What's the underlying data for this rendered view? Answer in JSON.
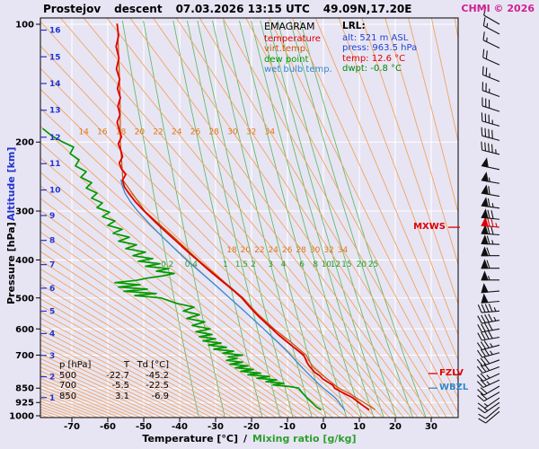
{
  "header": {
    "station": "Prostejov",
    "type": "descent",
    "datetime": "07.03.2026 13:15 UTC",
    "coords": "49.09N,17.20E",
    "copyright": "CHMI © 2026"
  },
  "legend": {
    "title": "EMAGRAM",
    "items": [
      {
        "label": "temperature",
        "color": "#dd0000"
      },
      {
        "label": "virt.temp.",
        "color": "#cc5500"
      },
      {
        "label": "dew point",
        "color": "#009900"
      },
      {
        "label": "wet bulb temp.",
        "color": "#3388cc"
      }
    ]
  },
  "lrl": {
    "title": "LRL:",
    "rows": [
      {
        "label": "alt:",
        "value": "521 m ASL",
        "color": "#2244cc"
      },
      {
        "label": "press:",
        "value": "963.5 hPa",
        "color": "#2244cc"
      },
      {
        "label": "temp:",
        "value": "12.6 °C",
        "color": "#dd0000"
      },
      {
        "label": "dwpt:",
        "value": "-0.8 °C",
        "color": "#008800"
      }
    ]
  },
  "table": {
    "header": [
      "p [hPa]",
      "T",
      "Td [°C]"
    ],
    "rows": [
      [
        "500",
        "-22.7",
        "-45.2"
      ],
      [
        "700",
        "-5.5",
        "-22.5"
      ],
      [
        "850",
        "3.1",
        "-6.9"
      ]
    ]
  },
  "axis_titles": {
    "altitude": "Altitude [km]",
    "pressure": "Pressure [hPa]",
    "x_black": "Temperature [°C]",
    "x_sep": "/",
    "x_green": "Mixing ratio [g/kg]"
  },
  "annotations": {
    "mxws": "MXWS",
    "fzlv": "FZLV",
    "wbzl": "WBZL"
  },
  "colors": {
    "temperature": "#dd0000",
    "virtual_temperature": "#cc5500",
    "dew_point": "#009900",
    "wet_bulb": "#3388cc",
    "adiabat_line": "#f2a35e",
    "adiabat_label": "#e07818",
    "mixing_line": "#66bb66",
    "mixing_label": "#2d9e2d",
    "grid_white": "#ffffff",
    "axis_blue": "#2233cc",
    "wind": "#111111",
    "mxws": "#dd0000",
    "background": "#e7e5f4",
    "frame": "#000000",
    "copyright": "#d02090"
  },
  "chart_data": {
    "type": "sounding-emagram",
    "pressure_ticks": [
      100,
      200,
      300,
      400,
      500,
      600,
      700,
      850,
      925,
      1000
    ],
    "temp_ticks": [
      -70,
      -60,
      -50,
      -40,
      -30,
      -20,
      -10,
      0,
      10,
      20,
      30
    ],
    "altitude_ticks": [
      {
        "km": 16,
        "p": 103.5
      },
      {
        "km": 15,
        "p": 121.1
      },
      {
        "km": 14,
        "p": 141.7
      },
      {
        "km": 13,
        "p": 165.8
      },
      {
        "km": 12,
        "p": 194.3
      },
      {
        "km": 11,
        "p": 227.0
      },
      {
        "km": 10,
        "p": 265.0
      },
      {
        "km": 9,
        "p": 308.0
      },
      {
        "km": 8,
        "p": 356.5
      },
      {
        "km": 7,
        "p": 411.0
      },
      {
        "km": 6,
        "p": 472.2
      },
      {
        "km": 5,
        "p": 540.5
      },
      {
        "km": 4,
        "p": 616.6
      },
      {
        "km": 3,
        "p": 701.2
      },
      {
        "km": 2,
        "p": 795.0
      },
      {
        "km": 1,
        "p": 898.8
      }
    ],
    "dry_adiabats": {
      "min": -78,
      "max": 60,
      "step": 2,
      "label_rows": [
        {
          "p": 188,
          "values": [
            14,
            16,
            18,
            20,
            22,
            24,
            26,
            28,
            30,
            32,
            34
          ]
        },
        {
          "p": 376,
          "values": [
            18,
            20,
            22,
            24,
            26,
            28,
            30,
            32,
            34
          ]
        }
      ]
    },
    "mixing_ratio": {
      "values": [
        0.2,
        0.4,
        1,
        1.5,
        2,
        3,
        4,
        6,
        8,
        10,
        12,
        15,
        20,
        25
      ],
      "label_p": 410
    },
    "levels": {
      "mxws_p": 330,
      "fzlv_p": 780,
      "wbzl_p": 850
    },
    "series": {
      "temperature": [
        [
          963.5,
          12.6
        ],
        [
          950,
          11.6
        ],
        [
          925,
          9.8
        ],
        [
          900,
          8.2
        ],
        [
          875,
          5.6
        ],
        [
          850,
          3.1
        ],
        [
          835,
          2.6
        ],
        [
          820,
          1.2
        ],
        [
          805,
          -0.2
        ],
        [
          790,
          -1.0
        ],
        [
          775,
          -2.4
        ],
        [
          760,
          -3.2
        ],
        [
          745,
          -4.0
        ],
        [
          730,
          -4.6
        ],
        [
          715,
          -5.0
        ],
        [
          700,
          -5.5
        ],
        [
          680,
          -7.2
        ],
        [
          660,
          -9.0
        ],
        [
          640,
          -10.8
        ],
        [
          620,
          -12.6
        ],
        [
          600,
          -14.2
        ],
        [
          580,
          -16.0
        ],
        [
          560,
          -17.8
        ],
        [
          540,
          -19.5
        ],
        [
          520,
          -21.1
        ],
        [
          500,
          -22.7
        ],
        [
          480,
          -24.9
        ],
        [
          460,
          -27.3
        ],
        [
          440,
          -29.9
        ],
        [
          420,
          -32.5
        ],
        [
          400,
          -35.1
        ],
        [
          380,
          -37.9
        ],
        [
          360,
          -40.7
        ],
        [
          340,
          -43.7
        ],
        [
          320,
          -46.8
        ],
        [
          300,
          -49.9
        ],
        [
          285,
          -52.2
        ],
        [
          270,
          -54.2
        ],
        [
          260,
          -55.4
        ],
        [
          250,
          -55.9
        ],
        [
          242,
          -55.0
        ],
        [
          234,
          -56.2
        ],
        [
          226,
          -56.8
        ],
        [
          218,
          -55.9
        ],
        [
          210,
          -56.4
        ],
        [
          202,
          -57.1
        ],
        [
          194,
          -56.2
        ],
        [
          186,
          -56.8
        ],
        [
          178,
          -57.4
        ],
        [
          170,
          -56.6
        ],
        [
          162,
          -57.2
        ],
        [
          154,
          -56.5
        ],
        [
          146,
          -57.3
        ],
        [
          138,
          -56.7
        ],
        [
          130,
          -57.6
        ],
        [
          122,
          -56.9
        ],
        [
          114,
          -57.7
        ],
        [
          107,
          -57.0
        ],
        [
          100,
          -57.4
        ]
      ],
      "virtual_temperature": [
        [
          963.5,
          14.3
        ],
        [
          925,
          11.3
        ],
        [
          875,
          7.0
        ],
        [
          850,
          4.3
        ],
        [
          800,
          0.6
        ],
        [
          750,
          -3.0
        ],
        [
          700,
          -4.8
        ],
        [
          650,
          -8.9
        ],
        [
          600,
          -13.7
        ],
        [
          550,
          -18.3
        ],
        [
          500,
          -22.3
        ],
        [
          450,
          -28.2
        ],
        [
          400,
          -34.8
        ],
        [
          350,
          -41.6
        ],
        [
          300,
          -49.7
        ],
        [
          250,
          -55.8
        ],
        [
          200,
          -56.5
        ],
        [
          150,
          -56.6
        ],
        [
          100,
          -57.3
        ]
      ],
      "dew_point": [
        [
          963.5,
          -0.8
        ],
        [
          950,
          -1.9
        ],
        [
          925,
          -3.2
        ],
        [
          900,
          -4.6
        ],
        [
          875,
          -5.8
        ],
        [
          850,
          -6.9
        ],
        [
          842,
          -9.5
        ],
        [
          834,
          -14.0
        ],
        [
          826,
          -11.0
        ],
        [
          818,
          -16.0
        ],
        [
          810,
          -13.0
        ],
        [
          802,
          -18.5
        ],
        [
          794,
          -15.0
        ],
        [
          786,
          -21.0
        ],
        [
          778,
          -17.5
        ],
        [
          770,
          -23.0
        ],
        [
          762,
          -19.5
        ],
        [
          754,
          -24.5
        ],
        [
          746,
          -21.0
        ],
        [
          738,
          -26.0
        ],
        [
          730,
          -22.5
        ],
        [
          722,
          -27.0
        ],
        [
          714,
          -24.0
        ],
        [
          707,
          -26.5
        ],
        [
          700,
          -22.5
        ],
        [
          692,
          -28.0
        ],
        [
          684,
          -25.0
        ],
        [
          676,
          -30.5
        ],
        [
          668,
          -27.0
        ],
        [
          660,
          -32.0
        ],
        [
          652,
          -28.5
        ],
        [
          644,
          -33.5
        ],
        [
          636,
          -30.0
        ],
        [
          628,
          -34.5
        ],
        [
          620,
          -31.0
        ],
        [
          610,
          -35.5
        ],
        [
          600,
          -31.5
        ],
        [
          588,
          -36.5
        ],
        [
          576,
          -33.0
        ],
        [
          564,
          -38.0
        ],
        [
          552,
          -34.5
        ],
        [
          540,
          -39.0
        ],
        [
          528,
          -36.0
        ],
        [
          516,
          -41.0
        ],
        [
          508,
          -43.0
        ],
        [
          500,
          -45.2
        ],
        [
          493,
          -52.5
        ],
        [
          487,
          -46.5
        ],
        [
          481,
          -55.5
        ],
        [
          475,
          -49.0
        ],
        [
          469,
          -57.0
        ],
        [
          463,
          -51.0
        ],
        [
          457,
          -58.0
        ],
        [
          451,
          -52.0
        ],
        [
          445,
          -49.0
        ],
        [
          439,
          -44.5
        ],
        [
          433,
          -41.5
        ],
        [
          427,
          -46.5
        ],
        [
          421,
          -43.0
        ],
        [
          415,
          -49.5
        ],
        [
          409,
          -45.5
        ],
        [
          403,
          -51.5
        ],
        [
          397,
          -47.5
        ],
        [
          390,
          -53.0
        ],
        [
          382,
          -49.5
        ],
        [
          374,
          -55.0
        ],
        [
          366,
          -52.0
        ],
        [
          358,
          -57.0
        ],
        [
          350,
          -54.0
        ],
        [
          342,
          -58.5
        ],
        [
          334,
          -56.0
        ],
        [
          326,
          -60.0
        ],
        [
          318,
          -58.0
        ],
        [
          310,
          -61.5
        ],
        [
          302,
          -59.5
        ],
        [
          294,
          -63.0
        ],
        [
          286,
          -61.5
        ],
        [
          278,
          -64.5
        ],
        [
          270,
          -63.0
        ],
        [
          262,
          -66.0
        ],
        [
          254,
          -64.5
        ],
        [
          246,
          -67.5
        ],
        [
          238,
          -66.0
        ],
        [
          230,
          -69.0
        ],
        [
          222,
          -68.0
        ],
        [
          214,
          -70.5
        ],
        [
          206,
          -69.5
        ],
        [
          200,
          -72.5
        ],
        [
          193,
          -75.5
        ],
        [
          185,
          -78.0
        ]
      ],
      "wet_bulb": [
        [
          963.5,
          5.8
        ],
        [
          940,
          4.9
        ],
        [
          925,
          4.4
        ],
        [
          900,
          3.3
        ],
        [
          875,
          1.7
        ],
        [
          850,
          0.0
        ],
        [
          825,
          -1.6
        ],
        [
          800,
          -3.1
        ],
        [
          775,
          -4.6
        ],
        [
          750,
          -6.1
        ],
        [
          725,
          -7.6
        ],
        [
          700,
          -9.1
        ],
        [
          675,
          -10.8
        ],
        [
          650,
          -12.6
        ],
        [
          625,
          -14.6
        ],
        [
          600,
          -16.6
        ],
        [
          575,
          -18.8
        ],
        [
          550,
          -21.1
        ],
        [
          525,
          -23.5
        ],
        [
          500,
          -26.1
        ],
        [
          475,
          -28.8
        ],
        [
          450,
          -31.7
        ],
        [
          425,
          -34.8
        ],
        [
          400,
          -38.1
        ],
        [
          375,
          -41.3
        ],
        [
          350,
          -44.7
        ],
        [
          325,
          -48.2
        ],
        [
          300,
          -51.7
        ],
        [
          285,
          -53.6
        ],
        [
          270,
          -55.2
        ],
        [
          258,
          -56.0
        ],
        [
          250,
          -56.3
        ]
      ]
    },
    "wind_barbs": [
      {
        "p": 975,
        "dir": 230,
        "spd": 10
      },
      {
        "p": 950,
        "dir": 230,
        "spd": 10
      },
      {
        "p": 925,
        "dir": 235,
        "spd": 15
      },
      {
        "p": 900,
        "dir": 235,
        "spd": 15
      },
      {
        "p": 870,
        "dir": 240,
        "spd": 20
      },
      {
        "p": 840,
        "dir": 240,
        "spd": 20
      },
      {
        "p": 810,
        "dir": 245,
        "spd": 25
      },
      {
        "p": 780,
        "dir": 245,
        "spd": 25
      },
      {
        "p": 750,
        "dir": 250,
        "spd": 30
      },
      {
        "p": 720,
        "dir": 250,
        "spd": 30
      },
      {
        "p": 690,
        "dir": 255,
        "spd": 35
      },
      {
        "p": 660,
        "dir": 255,
        "spd": 35
      },
      {
        "p": 630,
        "dir": 260,
        "spd": 40
      },
      {
        "p": 600,
        "dir": 260,
        "spd": 40
      },
      {
        "p": 570,
        "dir": 260,
        "spd": 45
      },
      {
        "p": 540,
        "dir": 265,
        "spd": 45
      },
      {
        "p": 510,
        "dir": 265,
        "spd": 50
      },
      {
        "p": 480,
        "dir": 265,
        "spd": 50
      },
      {
        "p": 450,
        "dir": 270,
        "spd": 55
      },
      {
        "p": 420,
        "dir": 270,
        "spd": 60
      },
      {
        "p": 390,
        "dir": 270,
        "spd": 60
      },
      {
        "p": 365,
        "dir": 272,
        "spd": 65
      },
      {
        "p": 345,
        "dir": 274,
        "spd": 70
      },
      {
        "p": 330,
        "dir": 275,
        "spd": 75,
        "color": "#dd0000"
      },
      {
        "p": 315,
        "dir": 276,
        "spd": 70
      },
      {
        "p": 295,
        "dir": 278,
        "spd": 65
      },
      {
        "p": 275,
        "dir": 280,
        "spd": 60
      },
      {
        "p": 255,
        "dir": 280,
        "spd": 55
      },
      {
        "p": 235,
        "dir": 282,
        "spd": 50
      },
      {
        "p": 215,
        "dir": 284,
        "spd": 45
      },
      {
        "p": 198,
        "dir": 285,
        "spd": 40
      },
      {
        "p": 182,
        "dir": 286,
        "spd": 35
      },
      {
        "p": 167,
        "dir": 288,
        "spd": 30
      },
      {
        "p": 153,
        "dir": 290,
        "spd": 25
      },
      {
        "p": 140,
        "dir": 292,
        "spd": 25
      },
      {
        "p": 127,
        "dir": 294,
        "spd": 20
      },
      {
        "p": 115,
        "dir": 296,
        "spd": 15
      },
      {
        "p": 106,
        "dir": 298,
        "spd": 15
      },
      {
        "p": 100,
        "dir": 300,
        "spd": 10
      }
    ]
  }
}
